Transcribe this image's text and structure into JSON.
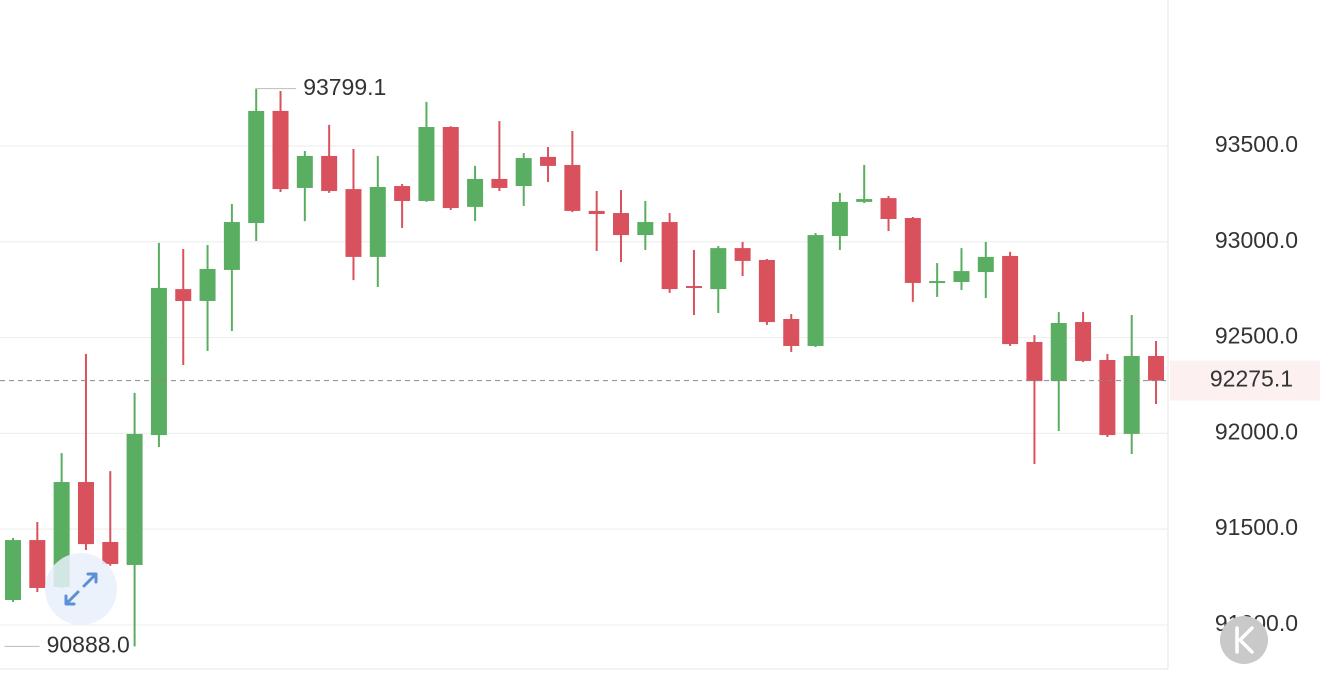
{
  "chart_data": {
    "type": "candlestick",
    "open": [
      91130,
      91443,
      91198,
      91746,
      91433,
      91313,
      91991,
      92753,
      92691,
      92853,
      93098,
      93683,
      93281,
      93448,
      93275,
      92921,
      93291,
      93213,
      93599,
      93182,
      93328,
      93291,
      93443,
      93401,
      93161,
      93150,
      93035,
      93103,
      92769,
      92753,
      92967,
      92905,
      92597,
      92456,
      93030,
      93208,
      93228,
      93124,
      92785,
      92790,
      92842,
      92926,
      92477,
      92273,
      92581,
      92383,
      91997,
      92404
    ],
    "high": [
      91454,
      91537,
      91897,
      92414,
      91803,
      92211,
      92994,
      92962,
      92983,
      93197,
      93799.1,
      93787,
      93474,
      93610,
      93484,
      93448,
      93302,
      93730,
      93603,
      93396,
      93630,
      93463,
      93495,
      93578,
      93265,
      93270,
      93213,
      93150,
      92957,
      92978,
      92999,
      92910,
      92623,
      93046,
      93255,
      93401,
      93239,
      93129,
      92889,
      92967,
      92999,
      92947,
      92513,
      92633,
      92633,
      92414,
      92618,
      92482
    ],
    "low": [
      91120,
      91172,
      91193,
      91391,
      91308,
      90888,
      91929,
      92357,
      92430,
      92534,
      93004,
      93260,
      93108,
      93255,
      92800,
      92764,
      93072,
      93208,
      93166,
      93108,
      93265,
      93187,
      93312,
      93155,
      92952,
      92894,
      92957,
      92733,
      92618,
      92628,
      92821,
      92566,
      92425,
      92451,
      92957,
      93202,
      93056,
      92686,
      92712,
      92748,
      92706,
      92456,
      91840,
      92012,
      92372,
      91981,
      91892,
      92153
    ],
    "close": [
      91443,
      91193,
      91746,
      91422,
      91318,
      91997,
      92759,
      92691,
      92858,
      93103,
      93683,
      93275,
      93448,
      93265,
      92921,
      93286,
      93213,
      93599,
      93176,
      93328,
      93281,
      93437,
      93396,
      93161,
      93145,
      93035,
      93103,
      92753,
      92759,
      92967,
      92900,
      92581,
      92456,
      93035,
      93208,
      93223,
      93119,
      92785,
      92795,
      92847,
      92921,
      92466,
      92273,
      92576,
      92378,
      91991,
      92404,
      92275.1
    ],
    "high_value_labels": [
      null,
      null,
      null,
      null,
      null,
      null,
      null,
      null,
      null,
      null,
      "93799.1",
      null,
      null,
      null,
      null,
      null,
      null,
      null,
      null,
      null,
      null,
      null,
      null,
      null,
      null,
      null,
      null,
      null,
      null,
      null,
      null,
      null,
      null,
      null,
      null,
      null,
      null,
      null,
      null,
      null,
      null,
      null,
      null,
      null,
      null,
      null,
      null,
      null
    ],
    "low_value_labels": [
      null,
      null,
      null,
      null,
      null,
      "90888.0",
      null,
      null,
      null,
      null,
      null,
      null,
      null,
      null,
      null,
      null,
      null,
      null,
      null,
      null,
      null,
      null,
      null,
      null,
      null,
      null,
      null,
      null,
      null,
      null,
      null,
      null,
      null,
      null,
      null,
      null,
      null,
      null,
      null,
      null,
      null,
      null,
      null,
      null,
      null,
      null,
      null,
      null
    ],
    "current_price": 92275.1,
    "up_color": "#5aae61",
    "down_color": "#d9515c",
    "ylim": [
      90770,
      94262
    ],
    "yticks": [
      {
        "value": 91000,
        "label": "91000.0"
      },
      {
        "value": 91500,
        "label": "91500.0"
      },
      {
        "value": 92000,
        "label": "92000.0"
      },
      {
        "value": 92500,
        "label": "92500.0"
      },
      {
        "value": 93000,
        "label": "93000.0"
      },
      {
        "value": 93500,
        "label": "93500.0"
      }
    ],
    "grid": true
  }
}
